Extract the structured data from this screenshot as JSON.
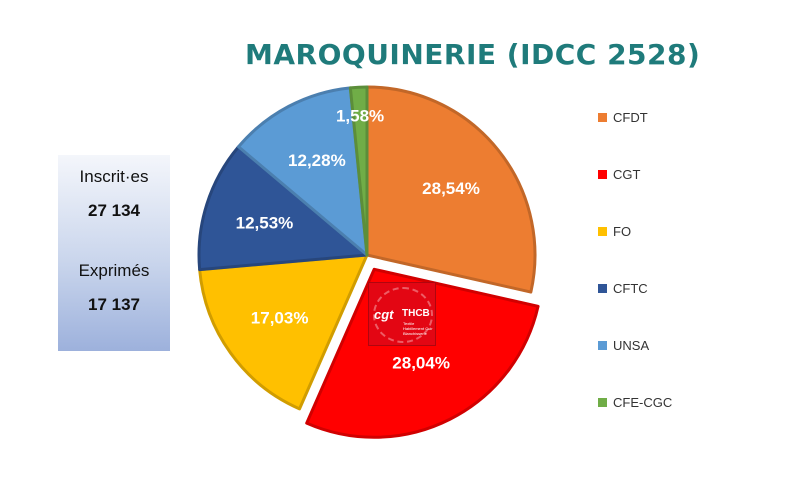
{
  "chart_data": {
    "type": "pie",
    "title": "MAROQUINERIE (IDCC 2528)",
    "categories": [
      "CFDT",
      "CGT",
      "FO",
      "CFTC",
      "UNSA",
      "CFE-CGC"
    ],
    "values": [
      28.54,
      28.04,
      17.03,
      12.53,
      12.28,
      1.58
    ],
    "data_labels": [
      "28,54%",
      "28,04%",
      "17,03%",
      "12,53%",
      "12,28%",
      "1,58%"
    ],
    "colors": [
      "#ed7d31",
      "#ff0000",
      "#ffc000",
      "#2f5597",
      "#5b9bd5",
      "#70ad47"
    ],
    "exploded": "CGT",
    "legend_position": "right"
  },
  "stats": {
    "inscrits_label": "Inscrit·es",
    "inscrits_value": "27 134",
    "exprimes_label": "Exprimés",
    "exprimes_value": "17 137"
  },
  "logo": {
    "cgt": "cgt",
    "thcb": "THCB",
    "subtitle": "Textile Habillement Cuir Blanchisserie"
  }
}
